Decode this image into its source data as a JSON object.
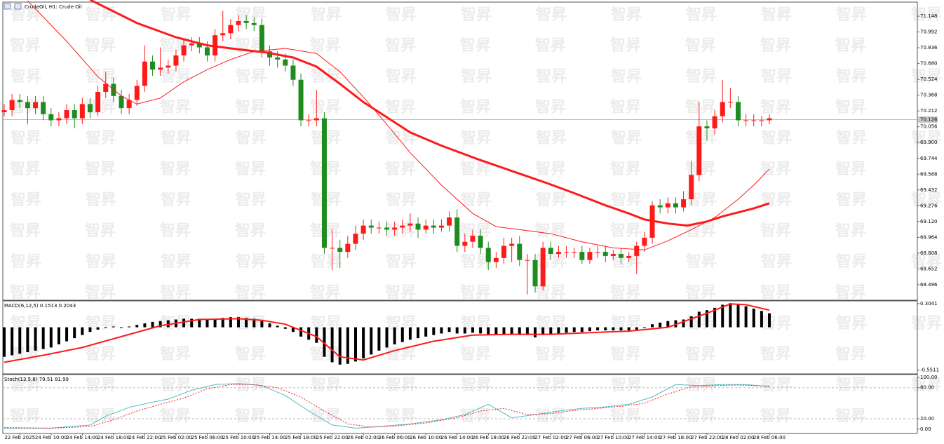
{
  "watermark": "智昇",
  "chart_data": [
    {
      "type": "candlestick",
      "title": "CrudeOil, H1: Crude Oil",
      "up_color": "#ff1a1a",
      "down_color": "#1e8c1e",
      "xlim": [
        -0.18,
        116.95
      ],
      "ylim": [
        68.35,
        71.28
      ],
      "yticks": [
        71.148,
        70.992,
        70.836,
        {
          "value": 70.68,
          "label": "70.680"
        },
        70.524,
        70.368,
        70.212,
        70.056,
        {
          "value": 69.9,
          "label": "69.900"
        },
        69.744,
        69.588,
        69.432,
        69.276,
        {
          "value": 69.12,
          "label": "69.120"
        },
        68.964,
        68.808,
        68.652,
        68.496
      ],
      "last_price": 70.126,
      "open": [
        70.2,
        70.22,
        70.32,
        70.3,
        70.24,
        70.3,
        70.18,
        70.12,
        70.14,
        70.22,
        70.14,
        70.28,
        70.2,
        70.4,
        70.48,
        70.36,
        70.24,
        70.32,
        70.46,
        70.7,
        70.62,
        70.64,
        70.66,
        70.76,
        70.86,
        70.88,
        70.84,
        70.76,
        70.96,
        70.98,
        71.06,
        71.1,
        71.08,
        71.06,
        70.8,
        70.74,
        70.72,
        70.66,
        70.52,
        70.12,
        70.12,
        70.14,
        68.86,
        68.86,
        68.82,
        68.9,
        69.0,
        69.08,
        69.06,
        69.06,
        69.04,
        69.06,
        69.08,
        69.1,
        69.04,
        69.08,
        69.06,
        69.08,
        69.16,
        68.88,
        68.92,
        68.98,
        68.86,
        68.72,
        68.76,
        68.88,
        68.9,
        68.74,
        68.74,
        68.48,
        68.86,
        68.8,
        68.82,
        68.82,
        68.82,
        68.74,
        68.82,
        68.82,
        68.78,
        68.8,
        68.76,
        68.78,
        68.88,
        68.96,
        69.28,
        69.26,
        69.3,
        69.26,
        69.34,
        69.58,
        70.06,
        70.04,
        70.16,
        70.3,
        70.3,
        70.12,
        70.12,
        70.12,
        70.12
      ],
      "high": [
        70.28,
        70.38,
        70.38,
        70.36,
        70.36,
        70.36,
        70.24,
        70.2,
        70.28,
        70.28,
        70.34,
        70.34,
        70.46,
        70.6,
        70.54,
        70.42,
        70.38,
        70.52,
        70.86,
        70.76,
        70.84,
        70.72,
        70.82,
        70.92,
        70.94,
        70.94,
        70.9,
        71.02,
        71.2,
        71.12,
        71.16,
        71.16,
        71.14,
        71.12,
        70.86,
        70.8,
        70.78,
        70.72,
        70.58,
        70.18,
        70.42,
        70.2,
        69.04,
        68.94,
        68.98,
        69.08,
        69.14,
        69.14,
        69.12,
        69.12,
        69.12,
        69.14,
        69.2,
        69.16,
        69.14,
        69.14,
        69.14,
        69.22,
        69.24,
        69.0,
        69.04,
        69.04,
        68.92,
        68.82,
        68.96,
        68.96,
        68.98,
        68.8,
        68.8,
        68.92,
        68.92,
        68.88,
        68.88,
        68.86,
        68.88,
        68.86,
        68.88,
        68.88,
        68.84,
        68.86,
        68.82,
        68.92,
        69.02,
        69.32,
        69.34,
        69.36,
        69.36,
        69.42,
        69.72,
        70.3,
        70.12,
        70.22,
        70.52,
        70.44,
        70.36,
        70.18,
        70.18,
        70.16,
        70.18
      ],
      "low": [
        70.16,
        70.16,
        70.24,
        70.08,
        70.18,
        70.12,
        70.06,
        70.06,
        70.08,
        70.04,
        70.08,
        70.14,
        70.16,
        70.34,
        70.3,
        70.18,
        70.18,
        70.26,
        70.4,
        70.56,
        70.56,
        70.58,
        70.6,
        70.7,
        70.8,
        70.78,
        70.7,
        70.7,
        70.9,
        70.92,
        71.0,
        71.02,
        71.0,
        70.74,
        70.66,
        70.64,
        70.6,
        70.46,
        70.06,
        70.06,
        70.06,
        68.8,
        68.64,
        68.66,
        68.76,
        68.84,
        68.94,
        69.0,
        69.0,
        68.98,
        68.98,
        69.0,
        69.02,
        68.96,
        69.0,
        69.0,
        69.02,
        69.02,
        68.82,
        68.82,
        68.86,
        68.8,
        68.64,
        68.66,
        68.7,
        68.72,
        68.68,
        68.4,
        68.42,
        68.44,
        68.74,
        68.76,
        68.76,
        68.76,
        68.7,
        68.7,
        68.76,
        68.72,
        68.74,
        68.7,
        68.72,
        68.6,
        68.82,
        68.9,
        69.2,
        69.2,
        69.2,
        69.22,
        69.28,
        69.52,
        69.92,
        69.98,
        70.1,
        70.24,
        70.06,
        70.06,
        70.06,
        70.06,
        70.08
      ],
      "close": [
        70.22,
        70.32,
        70.3,
        70.24,
        70.3,
        70.18,
        70.12,
        70.14,
        70.22,
        70.14,
        70.28,
        70.2,
        70.4,
        70.48,
        70.36,
        70.24,
        70.32,
        70.46,
        70.7,
        70.62,
        70.64,
        70.66,
        70.76,
        70.86,
        70.88,
        70.84,
        70.76,
        70.96,
        70.98,
        71.06,
        71.1,
        71.08,
        71.06,
        70.8,
        70.74,
        70.72,
        70.66,
        70.52,
        70.12,
        70.12,
        70.14,
        68.86,
        68.86,
        68.82,
        68.9,
        69.0,
        69.08,
        69.06,
        69.06,
        69.04,
        69.06,
        69.08,
        69.1,
        69.04,
        69.08,
        69.06,
        69.08,
        69.16,
        68.88,
        68.92,
        68.98,
        68.86,
        68.72,
        68.76,
        68.88,
        68.9,
        68.74,
        68.74,
        68.48,
        68.86,
        68.8,
        68.82,
        68.82,
        68.82,
        68.74,
        68.82,
        68.82,
        68.78,
        68.8,
        68.76,
        68.78,
        68.88,
        68.96,
        69.28,
        69.26,
        69.3,
        69.26,
        69.34,
        69.58,
        70.06,
        70.04,
        70.16,
        70.3,
        70.3,
        70.12,
        70.12,
        70.12,
        70.12,
        70.14
      ],
      "series": [
        {
          "color": "#ff1a1a",
          "width": 3,
          "x": [
            11,
            17,
            22,
            26,
            30,
            33.5,
            37,
            40,
            43,
            46,
            49,
            52,
            56,
            60.5,
            65,
            69.5,
            73,
            77,
            80,
            82,
            85,
            87.5,
            90,
            92,
            94,
            96,
            98
          ],
          "values": [
            71.31,
            71.08,
            70.94,
            70.86,
            70.82,
            70.79,
            70.74,
            70.65,
            70.48,
            70.3,
            70.15,
            70.0,
            69.87,
            69.74,
            69.62,
            69.5,
            69.4,
            69.28,
            69.2,
            69.14,
            69.1,
            69.08,
            69.12,
            69.17,
            69.21,
            69.25,
            69.3
          ]
        },
        {
          "color": "#ff1a1a",
          "width": 1,
          "x": [
            3,
            8,
            12,
            15,
            17,
            20,
            23,
            26,
            29,
            32,
            36,
            40,
            43,
            46,
            49,
            52,
            56,
            60,
            63,
            66,
            70,
            74,
            78,
            82,
            85,
            88,
            91,
            94,
            96,
            98
          ],
          "values": [
            71.3,
            70.9,
            70.55,
            70.36,
            70.28,
            70.34,
            70.5,
            70.62,
            70.72,
            70.8,
            70.83,
            70.78,
            70.6,
            70.35,
            70.08,
            69.8,
            69.48,
            69.2,
            69.07,
            69.04,
            69.0,
            68.92,
            68.86,
            68.84,
            68.93,
            69.04,
            69.16,
            69.34,
            69.48,
            69.64
          ]
        }
      ]
    },
    {
      "type": "macd",
      "title": "MACD(6,12,5) 0.1513 0.2043",
      "hist_color": "#000000",
      "signal_color": "#ff1a1a",
      "xlim": [
        -0.18,
        116.95
      ],
      "ylim": [
        -0.59,
        0.33
      ],
      "yticks": [
        0.3041,
        -0.5511
      ],
      "values": [
        -0.38,
        -0.36,
        -0.34,
        -0.32,
        -0.3,
        -0.28,
        -0.26,
        -0.22,
        -0.18,
        -0.14,
        -0.1,
        -0.06,
        -0.03,
        -0.01,
        0.01,
        0.0,
        0.01,
        0.03,
        0.05,
        0.07,
        0.08,
        0.09,
        0.1,
        0.11,
        0.11,
        0.11,
        0.1,
        0.11,
        0.12,
        0.13,
        0.13,
        0.12,
        0.11,
        0.08,
        0.05,
        0.02,
        -0.02,
        -0.06,
        -0.12,
        -0.16,
        -0.2,
        -0.38,
        -0.45,
        -0.48,
        -0.47,
        -0.44,
        -0.4,
        -0.35,
        -0.3,
        -0.26,
        -0.22,
        -0.19,
        -0.16,
        -0.14,
        -0.12,
        -0.1,
        -0.08,
        -0.06,
        -0.08,
        -0.08,
        -0.07,
        -0.08,
        -0.1,
        -0.1,
        -0.09,
        -0.09,
        -0.1,
        -0.1,
        -0.13,
        -0.1,
        -0.09,
        -0.08,
        -0.07,
        -0.06,
        -0.06,
        -0.05,
        -0.04,
        -0.04,
        -0.04,
        -0.04,
        -0.04,
        -0.03,
        -0.01,
        0.04,
        0.06,
        0.08,
        0.09,
        0.1,
        0.14,
        0.2,
        0.22,
        0.25,
        0.29,
        0.31,
        0.3,
        0.27,
        0.24,
        0.21,
        0.18
      ],
      "signal": {
        "x": [
          0,
          5,
          10,
          15,
          20,
          25,
          30,
          33,
          36,
          40,
          43,
          46,
          50,
          55,
          60,
          65,
          70,
          75,
          80,
          85,
          90,
          93,
          95,
          98
        ],
        "values": [
          -0.45,
          -0.36,
          -0.26,
          -0.12,
          0.02,
          0.1,
          0.11,
          0.09,
          0.04,
          -0.12,
          -0.38,
          -0.42,
          -0.3,
          -0.18,
          -0.1,
          -0.09,
          -0.09,
          -0.07,
          -0.05,
          0.0,
          0.18,
          0.3,
          0.29,
          0.22
        ]
      }
    },
    {
      "type": "stochastic",
      "title": "Stoch(13,5,8) 79.51 81.99",
      "xlim": [
        -0.18,
        116.95
      ],
      "ylim": [
        -7,
        104
      ],
      "yticks": [
        {
          "value": 100,
          "label": "100.00"
        },
        {
          "value": 80,
          "label": "80.00"
        },
        {
          "value": 20,
          "label": "20.00"
        },
        {
          "value": 0,
          "label": "0.00"
        }
      ],
      "levels": [
        80,
        20
      ],
      "xticks": [
        {
          "value": 2,
          "label": "22 Feb 2025"
        },
        {
          "value": 6,
          "label": "24 Feb 10:00"
        },
        {
          "value": 10,
          "label": "24 Feb 14:00"
        },
        {
          "value": 14,
          "label": "24 Feb 18:00"
        },
        {
          "value": 18,
          "label": "24 Feb 22:00"
        },
        {
          "value": 22,
          "label": "25 Feb 02:00"
        },
        {
          "value": 26,
          "label": "25 Feb 06:00"
        },
        {
          "value": 30,
          "label": "25 Feb 10:00"
        },
        {
          "value": 34,
          "label": "25 Feb 14:00"
        },
        {
          "value": 38,
          "label": "25 Feb 18:00"
        },
        {
          "value": 42,
          "label": "25 Feb 22:00"
        },
        {
          "value": 46,
          "label": "26 Feb 02:00"
        },
        {
          "value": 50,
          "label": "26 Feb 06:00"
        },
        {
          "value": 54,
          "label": "26 Feb 10:00"
        },
        {
          "value": 58,
          "label": "26 Feb 14:00"
        },
        {
          "value": 62,
          "label": "26 Feb 18:00"
        },
        {
          "value": 66,
          "label": "26 Feb 22:00"
        },
        {
          "value": 70,
          "label": "27 Feb 02:00"
        },
        {
          "value": 74,
          "label": "27 Feb 06:00"
        },
        {
          "value": 78,
          "label": "27 Feb 10:00"
        },
        {
          "value": 82,
          "label": "27 Feb 14:00"
        },
        {
          "value": 86,
          "label": "27 Feb 18:00"
        },
        {
          "value": 90,
          "label": "27 Feb 22:00"
        },
        {
          "value": 94,
          "label": "28 Feb 02:00"
        },
        {
          "value": 98,
          "label": "28 Feb 06:00"
        }
      ],
      "series": [
        {
          "color": "#4dbdc4",
          "dash": false,
          "x": [
            0,
            6,
            11,
            13,
            16,
            19,
            21,
            24,
            27,
            30,
            33,
            36,
            39,
            42,
            45,
            48,
            52,
            56,
            59,
            62,
            65,
            68,
            71,
            74,
            77,
            80,
            83,
            86,
            89,
            92,
            95,
            98
          ],
          "values": [
            2,
            2,
            8,
            25,
            42,
            52,
            58,
            75,
            86,
            88,
            84,
            65,
            35,
            8,
            2,
            5,
            10,
            18,
            28,
            48,
            22,
            28,
            35,
            40,
            43,
            48,
            62,
            86,
            84,
            86,
            86,
            82
          ]
        },
        {
          "color": "#ff1a1a",
          "dash": true,
          "x": [
            0,
            6,
            11,
            14,
            17,
            20,
            23,
            26,
            29,
            32,
            35,
            38,
            41,
            44,
            47,
            50,
            54,
            58,
            61,
            64,
            67,
            70,
            73,
            76,
            79,
            82,
            85,
            88,
            91,
            94,
            98
          ],
          "values": [
            3,
            2,
            5,
            18,
            35,
            48,
            60,
            78,
            86,
            86,
            80,
            62,
            35,
            10,
            4,
            6,
            12,
            22,
            35,
            40,
            28,
            30,
            36,
            40,
            44,
            50,
            68,
            82,
            84,
            85,
            83
          ]
        }
      ]
    }
  ]
}
